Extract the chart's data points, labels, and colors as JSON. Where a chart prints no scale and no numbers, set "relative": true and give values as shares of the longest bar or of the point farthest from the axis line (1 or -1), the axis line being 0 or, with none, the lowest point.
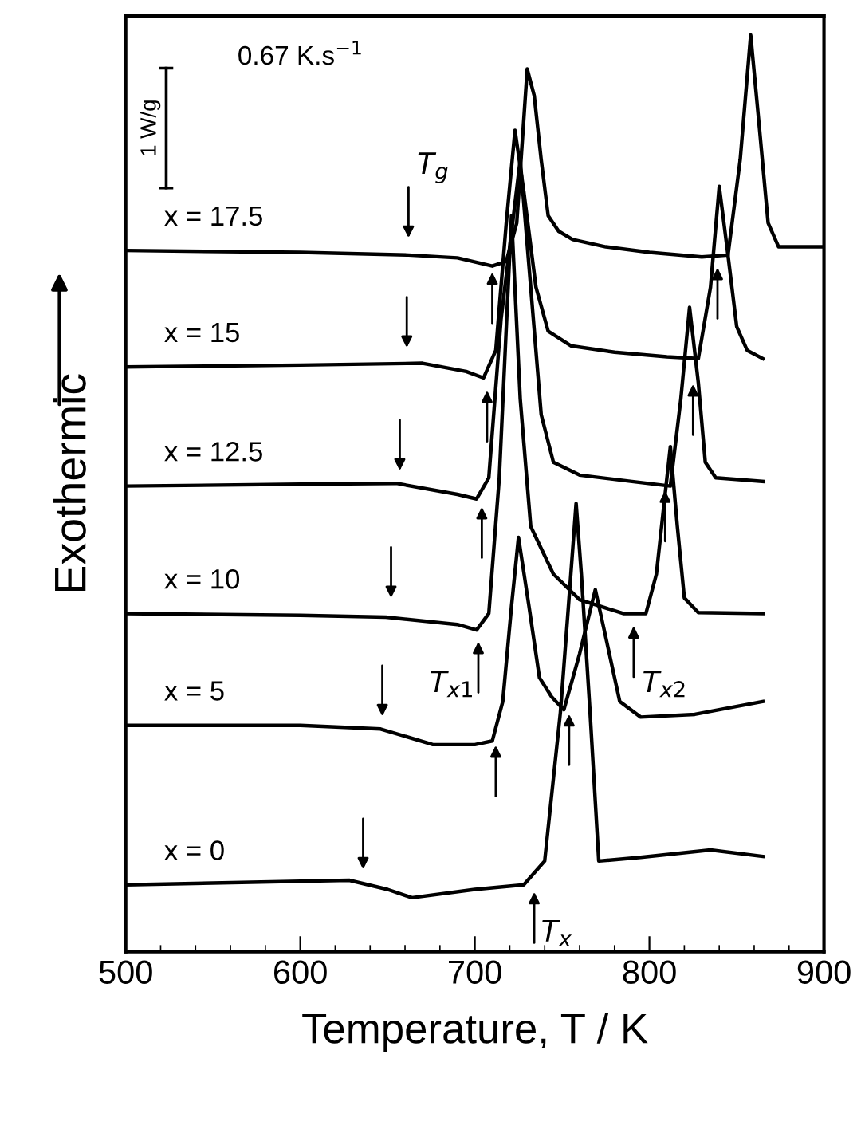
{
  "chart_data": {
    "type": "line",
    "relative": true,
    "xlabel": "Temperature, T / K",
    "ylabel": "Exothermic",
    "xlim": [
      500,
      900
    ],
    "xticks": [
      500,
      600,
      700,
      800,
      900
    ],
    "grid": false,
    "marker": "none",
    "line_style": "solid",
    "series": [
      {
        "name": "x = 17.5",
        "color": "#000000",
        "x": [
          500,
          600,
          662,
          690,
          710,
          718,
          724,
          730,
          734,
          738,
          742,
          748,
          756,
          775,
          800,
          830,
          845,
          852,
          858,
          863,
          868,
          874,
          880,
          900
        ],
        "values": [
          0.765,
          0.763,
          0.76,
          0.757,
          0.748,
          0.753,
          0.795,
          0.963,
          0.934,
          0.864,
          0.803,
          0.786,
          0.777,
          0.769,
          0.763,
          0.758,
          0.76,
          0.864,
          1.0,
          0.899,
          0.795,
          0.769,
          0.769,
          0.769
        ]
      },
      {
        "name": "x = 15",
        "color": "#000000",
        "x": [
          500,
          600,
          670,
          695,
          705,
          712,
          718,
          723,
          728,
          735,
          742,
          755,
          780,
          810,
          828,
          835,
          840,
          845,
          850,
          856,
          865
        ],
        "values": [
          0.638,
          0.64,
          0.642,
          0.633,
          0.626,
          0.656,
          0.795,
          0.896,
          0.83,
          0.725,
          0.677,
          0.661,
          0.654,
          0.649,
          0.647,
          0.725,
          0.835,
          0.76,
          0.682,
          0.656,
          0.647
        ]
      },
      {
        "name": "x = 12.5",
        "color": "#000000",
        "x": [
          500,
          600,
          655,
          690,
          701,
          708,
          715,
          726,
          732,
          738,
          745,
          760,
          790,
          812,
          818,
          823,
          828,
          832,
          838,
          865
        ],
        "values": [
          0.508,
          0.51,
          0.511,
          0.499,
          0.494,
          0.517,
          0.69,
          0.864,
          0.725,
          0.586,
          0.534,
          0.52,
          0.513,
          0.508,
          0.603,
          0.703,
          0.621,
          0.534,
          0.517,
          0.513
        ]
      },
      {
        "name": "x = 10",
        "color": "#000000",
        "x": [
          500,
          600,
          649,
          690,
          701,
          708,
          714,
          721,
          726,
          732,
          745,
          760,
          785,
          798,
          804,
          808,
          812,
          816,
          820,
          828,
          865
        ],
        "values": [
          0.369,
          0.367,
          0.365,
          0.357,
          0.351,
          0.369,
          0.517,
          0.803,
          0.603,
          0.464,
          0.412,
          0.384,
          0.369,
          0.369,
          0.412,
          0.482,
          0.551,
          0.464,
          0.386,
          0.37,
          0.369
        ]
      },
      {
        "name": "x = 5",
        "color": "#000000",
        "x": [
          500,
          600,
          646,
          676,
          700,
          710,
          716,
          721,
          725,
          731,
          737,
          744,
          751,
          760,
          769,
          775,
          783,
          795,
          826,
          865
        ],
        "values": [
          0.247,
          0.247,
          0.243,
          0.226,
          0.226,
          0.23,
          0.273,
          0.377,
          0.452,
          0.377,
          0.299,
          0.278,
          0.264,
          0.325,
          0.395,
          0.343,
          0.273,
          0.256,
          0.259,
          0.273
        ]
      },
      {
        "name": "x = 0",
        "color": "#000000",
        "x": [
          500,
          600,
          628,
          650,
          664,
          700,
          728,
          740,
          749,
          755,
          758,
          761,
          766,
          771,
          795,
          835,
          865
        ],
        "values": [
          0.073,
          0.077,
          0.078,
          0.068,
          0.059,
          0.068,
          0.073,
          0.099,
          0.261,
          0.412,
          0.489,
          0.412,
          0.261,
          0.099,
          0.103,
          0.111,
          0.104
        ]
      }
    ],
    "annotations": [
      "0.67 K.s$^{−1}$",
      "1 W/g",
      "T$_{g}$",
      "T$_{x1}$",
      "T$_{x2}$",
      "T$_{x}$"
    ]
  }
}
